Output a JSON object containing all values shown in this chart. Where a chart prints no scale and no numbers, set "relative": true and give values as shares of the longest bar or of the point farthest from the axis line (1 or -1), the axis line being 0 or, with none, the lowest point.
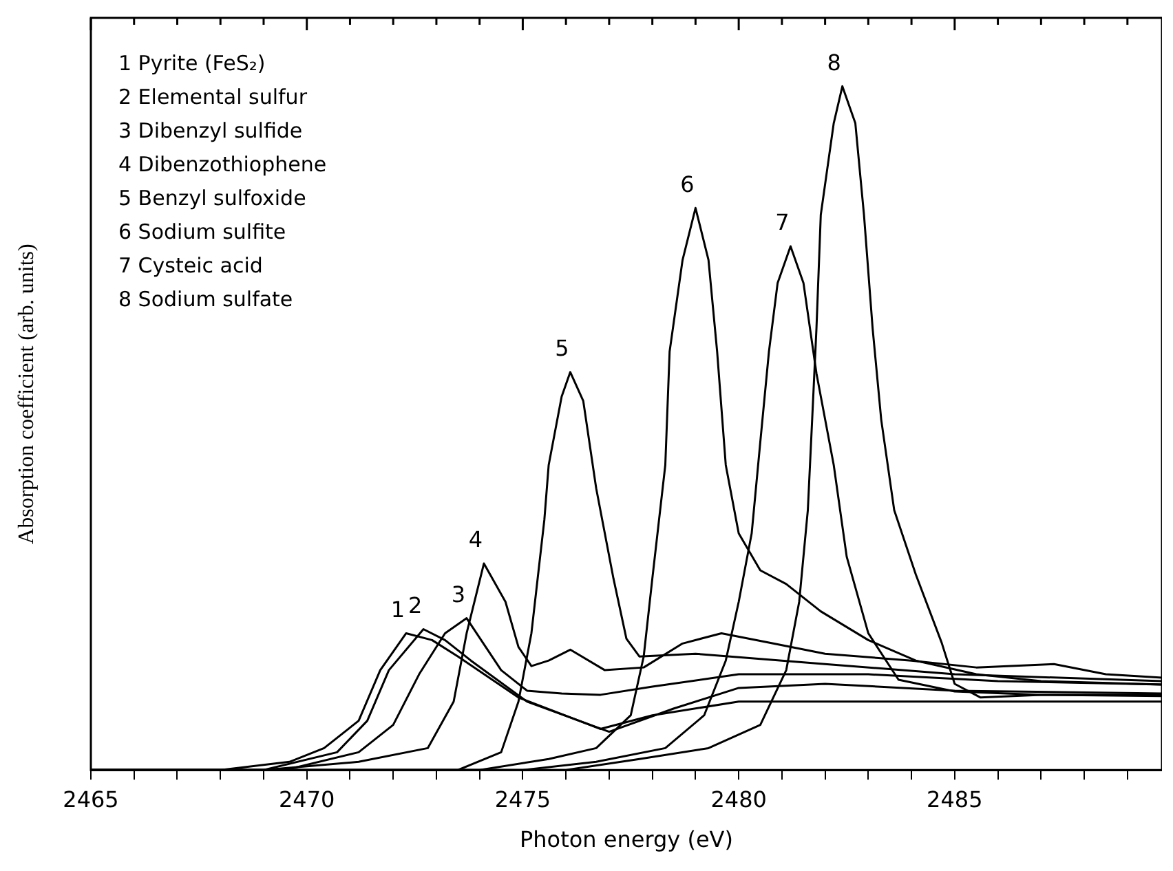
{
  "chart_data": {
    "type": "line",
    "xlabel": "Photon energy (eV)",
    "ylabel": "Absorption coefficient (arb. units)",
    "relative": true,
    "grid": false,
    "xlim": [
      2465,
      2489.8
    ],
    "xticks": [
      2465,
      {
        "value": 2466,
        "label": null
      },
      {
        "value": 2467,
        "label": null
      },
      {
        "value": 2468,
        "label": null
      },
      {
        "value": 2469,
        "label": null
      },
      2470,
      {
        "value": 2471,
        "label": null
      },
      {
        "value": 2472,
        "label": null
      },
      {
        "value": 2473,
        "label": null
      },
      {
        "value": 2474,
        "label": null
      },
      2475,
      {
        "value": 2476,
        "label": null
      },
      {
        "value": 2477,
        "label": null
      },
      {
        "value": 2478,
        "label": null
      },
      {
        "value": 2479,
        "label": null
      },
      2480,
      {
        "value": 2481,
        "label": null
      },
      {
        "value": 2482,
        "label": null
      },
      {
        "value": 2483,
        "label": null
      },
      {
        "value": 2484,
        "label": null
      },
      2485,
      {
        "value": 2486,
        "label": null
      },
      {
        "value": 2487,
        "label": null
      },
      {
        "value": 2488,
        "label": null
      },
      {
        "value": 2489,
        "label": null
      }
    ],
    "series": [
      {
        "name": "1",
        "color": "#000000",
        "x": [
          2465,
          2468,
          2469.6,
          2470.4,
          2471.2,
          2471.7,
          2472.3,
          2472.9,
          2473.5,
          2474.9,
          2476.8,
          2478,
          2480,
          2483,
          2486,
          2489.8
        ],
        "values": [
          0,
          0,
          0.012,
          0.032,
          0.072,
          0.146,
          0.2,
          0.19,
          0.166,
          0.106,
          0.06,
          0.08,
          0.1,
          0.1,
          0.1,
          0.1
        ]
      },
      {
        "name": "2",
        "color": "#000000",
        "x": [
          2465,
          2469,
          2470.7,
          2471.4,
          2471.9,
          2472.7,
          2473.2,
          2473.8,
          2475.1,
          2477,
          2478.5,
          2480,
          2482,
          2485,
          2489.8
        ],
        "values": [
          0,
          0,
          0.026,
          0.072,
          0.146,
          0.206,
          0.19,
          0.16,
          0.1,
          0.056,
          0.09,
          0.12,
          0.126,
          0.116,
          0.112
        ]
      },
      {
        "name": "3",
        "color": "#000000",
        "x": [
          2465,
          2469.5,
          2471.2,
          2472,
          2472.6,
          2473.2,
          2473.7,
          2474.5,
          2475.1,
          2475.9,
          2476.8,
          2478,
          2480,
          2483,
          2486,
          2489.8
        ],
        "values": [
          0,
          0,
          0.026,
          0.066,
          0.14,
          0.2,
          0.222,
          0.146,
          0.116,
          0.112,
          0.11,
          0.122,
          0.14,
          0.14,
          0.13,
          0.125
        ]
      },
      {
        "name": "4",
        "color": "#000000",
        "x": [
          2465,
          2469,
          2471.2,
          2472.8,
          2473.4,
          2473.7,
          2474.1,
          2474.6,
          2474.9,
          2475.2,
          2475.6,
          2476.1,
          2476.9,
          2477.8,
          2478.7,
          2479.6,
          2480.8,
          2482,
          2484,
          2485.5,
          2487.3,
          2488.5,
          2489.8
        ],
        "values": [
          0,
          0,
          0.012,
          0.032,
          0.1,
          0.2,
          0.302,
          0.246,
          0.18,
          0.152,
          0.16,
          0.176,
          0.146,
          0.15,
          0.185,
          0.2,
          0.185,
          0.17,
          0.16,
          0.15,
          0.155,
          0.14,
          0.135
        ]
      },
      {
        "name": "5",
        "color": "#000000",
        "x": [
          2465,
          2473.5,
          2474.5,
          2474.9,
          2475.2,
          2475.5,
          2475.6,
          2475.9,
          2476.1,
          2476.4,
          2476.7,
          2477.1,
          2477.4,
          2477.7,
          2479,
          2480,
          2482,
          2485,
          2489.8
        ],
        "values": [
          0,
          0,
          0.026,
          0.1,
          0.2,
          0.366,
          0.446,
          0.546,
          0.582,
          0.54,
          0.412,
          0.28,
          0.192,
          0.166,
          0.17,
          0.165,
          0.155,
          0.14,
          0.13
        ]
      },
      {
        "name": "6",
        "color": "#000000",
        "x": [
          2465,
          2474,
          2475.6,
          2476.7,
          2477.5,
          2477.8,
          2478,
          2478.3,
          2478.4,
          2478.7,
          2479,
          2479.3,
          2479.5,
          2479.7,
          2480,
          2480.5,
          2481.1,
          2481.9,
          2483,
          2484.1,
          2485.5,
          2487,
          2489.8
        ],
        "values": [
          0,
          0,
          0.016,
          0.032,
          0.08,
          0.166,
          0.28,
          0.446,
          0.612,
          0.746,
          0.822,
          0.746,
          0.612,
          0.446,
          0.346,
          0.292,
          0.272,
          0.232,
          0.19,
          0.16,
          0.14,
          0.13,
          0.125
        ]
      },
      {
        "name": "7",
        "color": "#000000",
        "x": [
          2465,
          2475,
          2476.7,
          2478.3,
          2479.2,
          2479.7,
          2480,
          2480.3,
          2480.5,
          2480.7,
          2480.9,
          2481.2,
          2481.5,
          2481.8,
          2482.2,
          2482.5,
          2483,
          2483.7,
          2485,
          2487,
          2489.8
        ],
        "values": [
          0,
          0,
          0.012,
          0.032,
          0.08,
          0.16,
          0.246,
          0.346,
          0.48,
          0.612,
          0.712,
          0.766,
          0.712,
          0.58,
          0.446,
          0.312,
          0.2,
          0.132,
          0.115,
          0.11,
          0.108
        ]
      },
      {
        "name": "8",
        "color": "#000000",
        "x": [
          2465,
          2476,
          2477.7,
          2479.3,
          2480.5,
          2481.1,
          2481.4,
          2481.6,
          2481.7,
          2481.8,
          2481.9,
          2482.2,
          2482.4,
          2482.7,
          2482.9,
          2483.1,
          2483.3,
          2483.6,
          2484.1,
          2484.7,
          2485,
          2485.6,
          2487,
          2489.8
        ],
        "values": [
          0,
          0,
          0.016,
          0.032,
          0.066,
          0.146,
          0.246,
          0.38,
          0.512,
          0.646,
          0.812,
          0.946,
          1,
          0.946,
          0.812,
          0.646,
          0.512,
          0.38,
          0.286,
          0.186,
          0.126,
          0.106,
          0.11,
          0.11
        ]
      }
    ],
    "annotations": [
      "1 Pyrite (FeS₂)",
      "2 Elemental sulfur",
      "3 Dibenzyl sulfide",
      "4 Dibenzothiophene",
      "5 Benzyl sulfoxide",
      "6 Sodium sulfite",
      "7 Cysteic acid",
      "8 Sodium sulfate"
    ]
  }
}
